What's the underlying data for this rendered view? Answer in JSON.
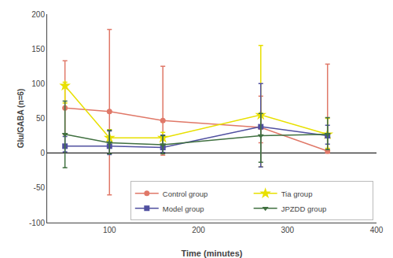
{
  "chart_data": {
    "type": "line",
    "xlabel": "Time (minutes)",
    "ylabel": "Glu/GABA (n=6)",
    "x": [
      50,
      100,
      160,
      270,
      345
    ],
    "series": [
      {
        "name": "Control group",
        "color": "#E07868",
        "marker": "circle",
        "values": [
          65,
          60,
          47,
          37,
          3
        ],
        "error_upper": [
          68,
          118,
          78,
          45,
          125
        ],
        "error_lower": [
          38,
          120,
          50,
          22,
          3
        ]
      },
      {
        "name": "Tia group",
        "color": "#E8E000",
        "marker": "star",
        "values": [
          97,
          22,
          22,
          55,
          27
        ],
        "error_upper": [
          5,
          12,
          8,
          100,
          23
        ],
        "error_lower": [
          25,
          10,
          10,
          75,
          20
        ]
      },
      {
        "name": "Model group",
        "color": "#5050A0",
        "marker": "square",
        "values": [
          10,
          10,
          8,
          38,
          25
        ],
        "error_upper": [
          14,
          22,
          18,
          62,
          15
        ],
        "error_lower": [
          8,
          12,
          7,
          58,
          12
        ]
      },
      {
        "name": "JPZDD group",
        "color": "#407040",
        "marker": "triangle-down",
        "values": [
          27,
          15,
          12,
          25,
          27
        ],
        "error_upper": [
          48,
          18,
          13,
          32,
          24
        ],
        "error_lower": [
          48,
          16,
          13,
          38,
          22
        ]
      }
    ],
    "xlim": [
      30,
      400
    ],
    "xticks": [
      100,
      200,
      300,
      400
    ],
    "ylim": [
      -100,
      200
    ],
    "yticks": [
      -100,
      -50,
      0,
      50,
      100,
      150,
      200
    ],
    "grid": false,
    "legend": "lower right"
  }
}
